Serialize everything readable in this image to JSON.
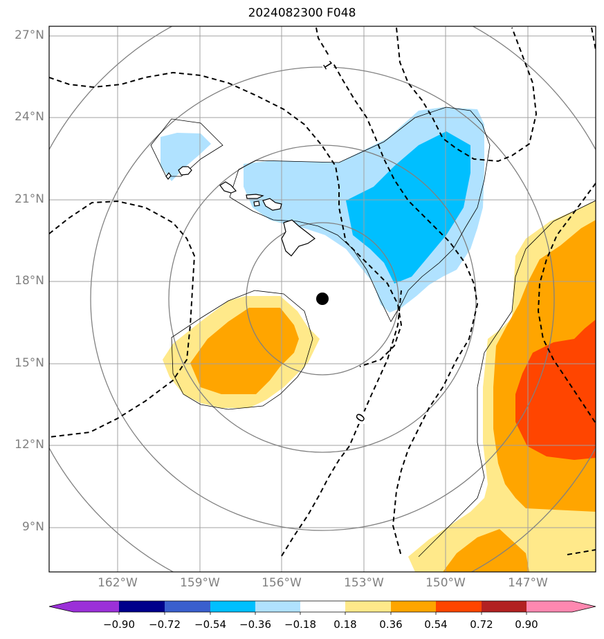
{
  "title": "2024082300 F048",
  "map": {
    "lat_labels": [
      "27°N",
      "24°N",
      "21°N",
      "18°N",
      "15°N",
      "12°N",
      "9°N"
    ],
    "lon_labels": [
      "162°W",
      "159°W",
      "156°W",
      "153°W",
      "150°W",
      "147°W"
    ],
    "storm_center": {
      "lat": 17.4,
      "lon": -154.5
    },
    "contour_labels": [
      "1",
      "0"
    ]
  },
  "colorbar": {
    "ticks": [
      "−0.90",
      "−0.72",
      "−0.54",
      "−0.36",
      "−0.18",
      "0.18",
      "0.36",
      "0.54",
      "0.72",
      "0.90"
    ],
    "colors": [
      "#9b30d8",
      "#00008b",
      "#3a5fcd",
      "#00bfff",
      "#b0e2ff",
      "#ffffff",
      "#ffe98a",
      "#ffa500",
      "#ff4500",
      "#b22222",
      "#ff88b0"
    ]
  },
  "colors": {
    "light_blue": "#b0e2ff",
    "deep_sky_blue": "#00bfff",
    "light_yellow": "#ffe98a",
    "orange": "#ffa500",
    "orange_red": "#ff4500",
    "grid": "#a0a0a0",
    "range_rings": "#808080"
  }
}
